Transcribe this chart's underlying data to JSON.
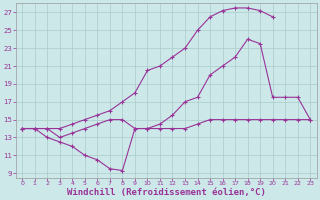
{
  "background_color": "#cce8e8",
  "grid_color": "#aacccc",
  "line_color": "#993399",
  "xlabel": "Windchill (Refroidissement éolien,°C)",
  "xlabel_fontsize": 6.5,
  "ylim": [
    8.5,
    28
  ],
  "xlim": [
    -0.5,
    23.5
  ],
  "yticks": [
    9,
    11,
    13,
    15,
    17,
    19,
    21,
    23,
    25,
    27
  ],
  "xticks": [
    0,
    1,
    2,
    3,
    4,
    5,
    6,
    7,
    8,
    9,
    10,
    11,
    12,
    13,
    14,
    15,
    16,
    17,
    18,
    19,
    20,
    21,
    22,
    23
  ],
  "series1_x": [
    0,
    1,
    2,
    3,
    4,
    5,
    6,
    7,
    8,
    9,
    10,
    11,
    12,
    13,
    14,
    15,
    16,
    17,
    18,
    19,
    20,
    21,
    22,
    23
  ],
  "series1_y": [
    14,
    14,
    14,
    13,
    13.5,
    14,
    14.5,
    15,
    15,
    14,
    14,
    14,
    14,
    14,
    14.5,
    15,
    15,
    15,
    15,
    15,
    15,
    15,
    15,
    15
  ],
  "series2_x": [
    0,
    1,
    2,
    3,
    4,
    5,
    6,
    7,
    8,
    9,
    10,
    11,
    12,
    13,
    14,
    15,
    16,
    17,
    18,
    19,
    20,
    21,
    22,
    23
  ],
  "series2_y": [
    14,
    14,
    13,
    12.5,
    12,
    11,
    10.5,
    9.5,
    9.3,
    14,
    14,
    14.5,
    15.5,
    17,
    17.5,
    20,
    21,
    22,
    24,
    23.5,
    17.5,
    17.5,
    17.5,
    15
  ],
  "series3_x": [
    0,
    1,
    2,
    3,
    4,
    5,
    6,
    7,
    8,
    9,
    10,
    11,
    12,
    13,
    14,
    15,
    16,
    17,
    18,
    19,
    20
  ],
  "series3_y": [
    14,
    14,
    14,
    14,
    14.5,
    15,
    15.5,
    16,
    17,
    18,
    20.5,
    21,
    22,
    23,
    25,
    26.5,
    27.2,
    27.5,
    27.5,
    27.2,
    26.5
  ]
}
